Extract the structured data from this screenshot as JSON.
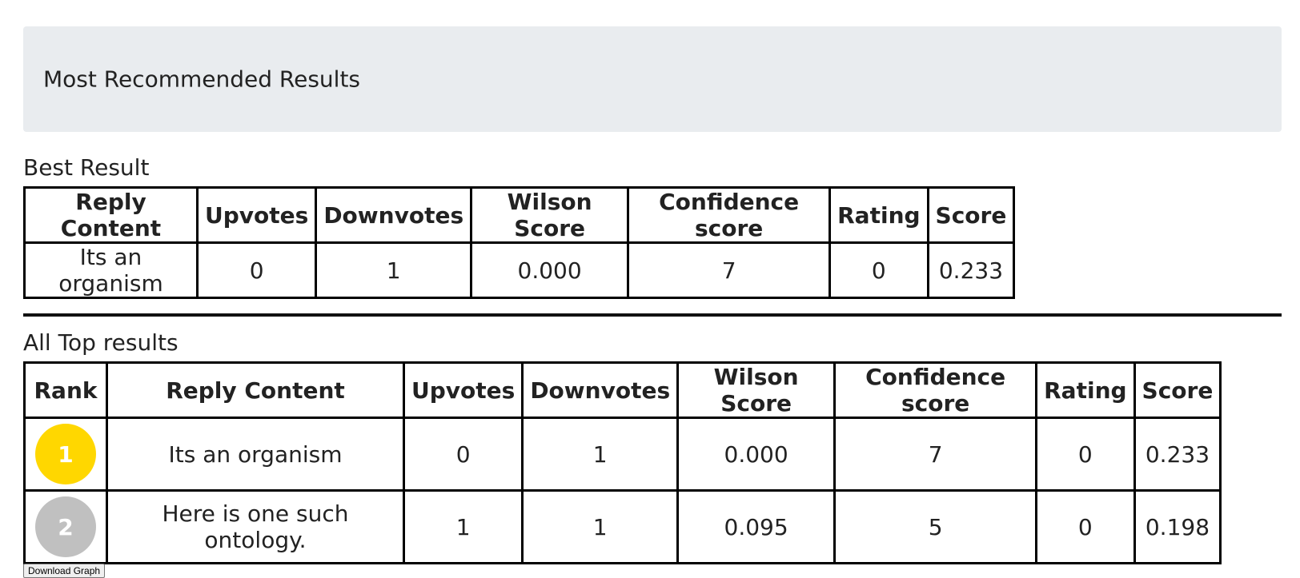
{
  "header": {
    "title": "Most Recommended Results"
  },
  "best_section": {
    "title": "Best Result",
    "columns": [
      "Reply Content",
      "Upvotes",
      "Downvotes",
      "Wilson Score",
      "Confidence score",
      "Rating",
      "Score"
    ],
    "row": [
      "Its an organism",
      "0",
      "1",
      "0.000",
      "7",
      "0",
      "0.233"
    ]
  },
  "all_section": {
    "title": "All Top results",
    "columns": [
      "Rank",
      "Reply Content",
      "Upvotes",
      "Downvotes",
      "Wilson Score",
      "Confidence score",
      "Rating",
      "Score"
    ],
    "rows": [
      {
        "rank": "1",
        "rank_color": "#FFD700",
        "reply": "Its an organism",
        "upvotes": "0",
        "downvotes": "1",
        "wilson": "0.000",
        "confidence": "7",
        "rating": "0",
        "score": "0.233"
      },
      {
        "rank": "2",
        "rank_color": "#C0C0C0",
        "reply": "Here is one such ontology.",
        "upvotes": "1",
        "downvotes": "1",
        "wilson": "0.095",
        "confidence": "5",
        "rating": "0",
        "score": "0.198"
      }
    ]
  },
  "download_button": {
    "label": "Download Graph"
  }
}
